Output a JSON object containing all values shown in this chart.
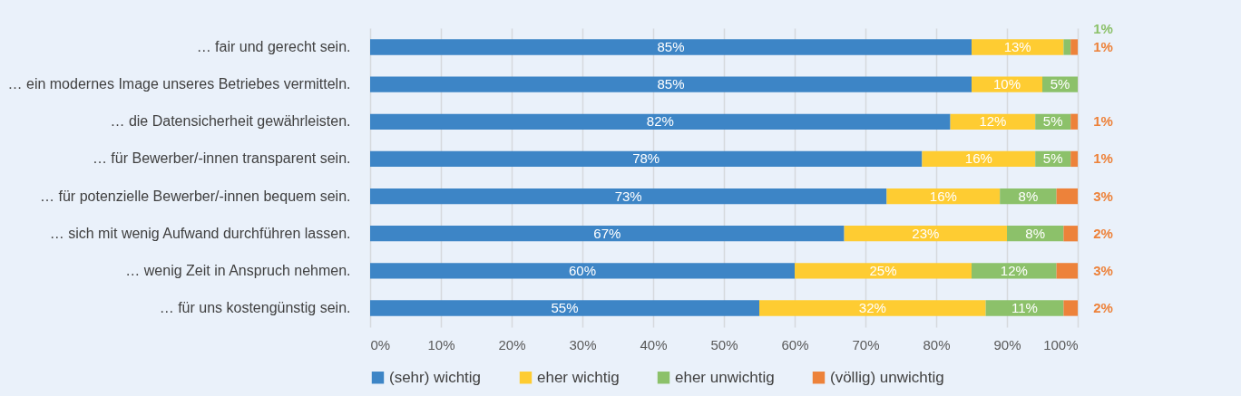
{
  "chart_data": {
    "type": "bar",
    "orientation": "horizontal",
    "stacked": true,
    "categories": [
      "… fair und gerecht sein.",
      "… ein modernes Image unseres Betriebes vermitteln.",
      "… die Datensicherheit gewährleisten.",
      "… für Bewerber/-innen transparent sein.",
      "… für potenzielle Bewerber/-innen bequem sein.",
      "… sich mit wenig Aufwand durchführen lassen.",
      "… wenig Zeit in Anspruch nehmen.",
      "… für uns kostengünstig sein."
    ],
    "series": [
      {
        "name": "(sehr) wichtig",
        "color": "#3d85c6",
        "values": [
          85,
          85,
          82,
          78,
          73,
          67,
          60,
          55
        ],
        "value_labels": [
          "85%",
          "85%",
          "82%",
          "78%",
          "73%",
          "67%",
          "60%",
          "55%"
        ]
      },
      {
        "name": "eher wichtig",
        "color": "#fecc32",
        "values": [
          13,
          10,
          12,
          16,
          16,
          23,
          25,
          32
        ],
        "value_labels": [
          "13%",
          "10%",
          "12%",
          "16%",
          "16%",
          "23%",
          "25%",
          "32%"
        ]
      },
      {
        "name": "eher unwichtig",
        "color": "#8cc16a",
        "values": [
          1,
          5,
          5,
          5,
          8,
          8,
          12,
          11
        ],
        "value_labels": [
          "1%",
          "5%",
          "5%",
          "5%",
          "8%",
          "8%",
          "12%",
          "11%"
        ]
      },
      {
        "name": "(völlig) unwichtig",
        "color": "#ed823a",
        "values": [
          1,
          null,
          1,
          1,
          3,
          2,
          3,
          2
        ],
        "value_labels": [
          "1%",
          null,
          "1%",
          "1%",
          "3%",
          "2%",
          "3%",
          "2%"
        ]
      }
    ],
    "xlim": [
      0,
      100
    ],
    "xticks": [
      {
        "value": 0,
        "label": "0%"
      },
      {
        "value": 10,
        "label": "10%"
      },
      {
        "value": 20,
        "label": "20%"
      },
      {
        "value": 30,
        "label": "30%"
      },
      {
        "value": 40,
        "label": "40%"
      },
      {
        "value": 50,
        "label": "50%"
      },
      {
        "value": 60,
        "label": "60%"
      },
      {
        "value": 70,
        "label": "70%"
      },
      {
        "value": 80,
        "label": "80%"
      },
      {
        "value": 90,
        "label": "90%"
      },
      {
        "value": 100,
        "label": "100%"
      }
    ],
    "grid": "x",
    "legend": "bottom"
  }
}
